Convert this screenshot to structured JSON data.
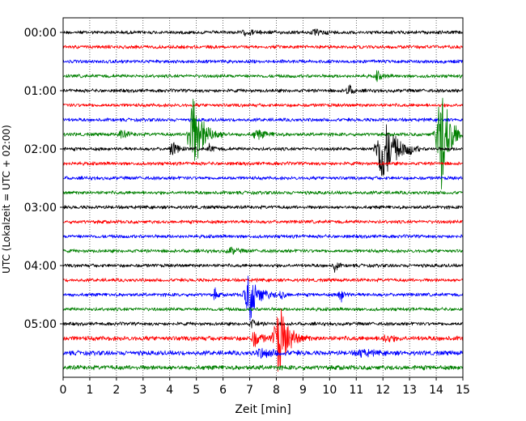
{
  "chart_data": {
    "type": "line",
    "title": "",
    "xlabel": "Zeit  [min]",
    "ylabel": "UTC (Lokalzeit = UTC + 02:00)",
    "xlim": [
      0,
      15
    ],
    "x_ticks": [
      0,
      1,
      2,
      3,
      4,
      5,
      6,
      7,
      8,
      9,
      10,
      11,
      12,
      13,
      14,
      15
    ],
    "x_tick_labels": [
      "0",
      "1",
      "2",
      "3",
      "4",
      "5",
      "6",
      "7",
      "8",
      "9",
      "10",
      "11",
      "12",
      "13",
      "14",
      "15"
    ],
    "y_tick_labels": [
      "00:00",
      "01:00",
      "02:00",
      "03:00",
      "04:00",
      "05:00"
    ],
    "y_tick_traces": [
      0,
      4,
      8,
      12,
      16,
      20
    ],
    "grid": "vertical-dotted",
    "trace_interval_min": 15,
    "trace_count": 24,
    "trace_colors": [
      "#000000",
      "#ff0000",
      "#0000ff",
      "#008000"
    ],
    "events": [
      {
        "trace": 0,
        "time": 6.9,
        "amp": 0.15,
        "dur": 0.5
      },
      {
        "trace": 0,
        "time": 9.5,
        "amp": 0.15,
        "dur": 0.5
      },
      {
        "trace": 3,
        "time": 11.8,
        "amp": 0.35,
        "dur": 0.2
      },
      {
        "trace": 4,
        "time": 10.7,
        "amp": 0.45,
        "dur": 0.2
      },
      {
        "trace": 7,
        "time": 2.2,
        "amp": 0.3,
        "dur": 0.3
      },
      {
        "trace": 7,
        "time": 4.9,
        "amp": 3.0,
        "dur": 0.45
      },
      {
        "trace": 7,
        "time": 7.3,
        "amp": 0.35,
        "dur": 0.4
      },
      {
        "trace": 7,
        "time": 14.2,
        "amp": 4.4,
        "dur": 0.4
      },
      {
        "trace": 8,
        "time": 4.1,
        "amp": 0.7,
        "dur": 0.2
      },
      {
        "trace": 8,
        "time": 5.5,
        "amp": 0.3,
        "dur": 0.2
      },
      {
        "trace": 8,
        "time": 12.0,
        "amp": 3.0,
        "dur": 0.5
      },
      {
        "trace": 8,
        "time": 13.0,
        "amp": 0.3,
        "dur": 0.15
      },
      {
        "trace": 15,
        "time": 6.3,
        "amp": 0.25,
        "dur": 0.3
      },
      {
        "trace": 16,
        "time": 10.2,
        "amp": 0.8,
        "dur": 0.1
      },
      {
        "trace": 18,
        "time": 5.7,
        "amp": 0.5,
        "dur": 0.1
      },
      {
        "trace": 18,
        "time": 7.0,
        "amp": 2.0,
        "dur": 0.4
      },
      {
        "trace": 18,
        "time": 8.2,
        "amp": 0.4,
        "dur": 0.15
      },
      {
        "trace": 18,
        "time": 10.4,
        "amp": 0.7,
        "dur": 0.15
      },
      {
        "trace": 20,
        "time": 7.1,
        "amp": 0.3,
        "dur": 0.2
      },
      {
        "trace": 21,
        "time": 7.2,
        "amp": 0.6,
        "dur": 0.3
      },
      {
        "trace": 21,
        "time": 8.1,
        "amp": 2.8,
        "dur": 0.4
      },
      {
        "trace": 21,
        "time": 12.1,
        "amp": 0.3,
        "dur": 0.3
      },
      {
        "trace": 22,
        "time": 7.5,
        "amp": 0.3,
        "dur": 0.6
      },
      {
        "trace": 22,
        "time": 11.2,
        "amp": 0.25,
        "dur": 0.5
      }
    ]
  }
}
